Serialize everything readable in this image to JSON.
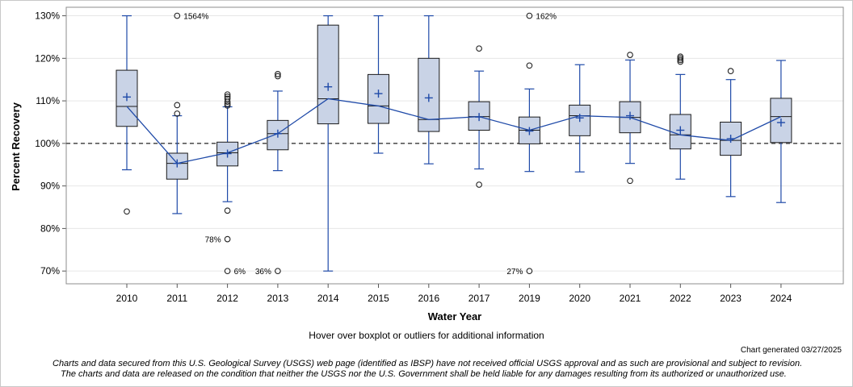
{
  "colors": {
    "box_fill": "#c9d3e6",
    "box_stroke": "#1a1a1a",
    "blue": "#1f4aa8",
    "refline": "#555555",
    "grid": "#e6e6e6"
  },
  "chart_data": {
    "type": "boxplot",
    "xlabel": "Water Year",
    "ylabel": "Percent Recovery",
    "ylim": [
      67,
      132
    ],
    "y_ticks": [
      70,
      80,
      90,
      100,
      110,
      120,
      130
    ],
    "y_tick_labels": [
      "70%",
      "80%",
      "90%",
      "100%",
      "110%",
      "120%",
      "130%"
    ],
    "reference_line": 100,
    "categories": [
      "2010",
      "2011",
      "2012",
      "2013",
      "2014",
      "2015",
      "2016",
      "2017",
      "2019",
      "2020",
      "2021",
      "2022",
      "2023",
      "2024"
    ],
    "boxes": [
      {
        "year": "2010",
        "q1": 104.0,
        "median": 108.7,
        "q3": 117.2,
        "mean": 110.9,
        "whisker_low": 93.8,
        "whisker_high": 130.0,
        "outliers": [
          84.0
        ]
      },
      {
        "year": "2011",
        "q1": 91.6,
        "median": 95.3,
        "q3": 97.7,
        "mean": 95.3,
        "whisker_low": 83.5,
        "whisker_high": 106.5,
        "outliers": [
          109.0,
          107.0
        ]
      },
      {
        "year": "2012",
        "q1": 94.7,
        "median": 97.8,
        "q3": 100.3,
        "mean": 97.6,
        "whisker_low": 86.3,
        "whisker_high": 108.6,
        "outliers": [
          111.5,
          111.0,
          110.5,
          109.8,
          109.3,
          108.9,
          84.2,
          77.5
        ]
      },
      {
        "year": "2013",
        "q1": 98.5,
        "median": 102.3,
        "q3": 105.4,
        "mean": 102.3,
        "whisker_low": 93.6,
        "whisker_high": 112.3,
        "outliers": [
          116.3,
          115.8
        ]
      },
      {
        "year": "2014",
        "q1": 104.6,
        "median": 110.5,
        "q3": 127.8,
        "mean": 113.3,
        "whisker_low": 70.0,
        "whisker_high": 130.0,
        "outliers": []
      },
      {
        "year": "2015",
        "q1": 104.7,
        "median": 108.8,
        "q3": 116.2,
        "mean": 111.7,
        "whisker_low": 97.7,
        "whisker_high": 130.0,
        "outliers": []
      },
      {
        "year": "2016",
        "q1": 102.8,
        "median": 105.6,
        "q3": 120.0,
        "mean": 110.7,
        "whisker_low": 95.2,
        "whisker_high": 130.0,
        "outliers": []
      },
      {
        "year": "2017",
        "q1": 103.1,
        "median": 106.3,
        "q3": 109.8,
        "mean": 106.2,
        "whisker_low": 94.0,
        "whisker_high": 117.0,
        "outliers": [
          122.3,
          90.3
        ]
      },
      {
        "year": "2019",
        "q1": 99.9,
        "median": 103.1,
        "q3": 106.2,
        "mean": 102.9,
        "whisker_low": 93.4,
        "whisker_high": 112.8,
        "outliers": [
          118.3
        ]
      },
      {
        "year": "2020",
        "q1": 101.8,
        "median": 106.5,
        "q3": 109.0,
        "mean": 106.0,
        "whisker_low": 93.3,
        "whisker_high": 118.5,
        "outliers": []
      },
      {
        "year": "2021",
        "q1": 102.5,
        "median": 106.1,
        "q3": 109.8,
        "mean": 106.5,
        "whisker_low": 95.3,
        "whisker_high": 119.6,
        "outliers": [
          120.8,
          91.2
        ]
      },
      {
        "year": "2022",
        "q1": 98.7,
        "median": 102.0,
        "q3": 106.8,
        "mean": 103.1,
        "whisker_low": 91.6,
        "whisker_high": 116.2,
        "outliers": [
          120.4,
          120.0,
          119.6,
          119.2
        ]
      },
      {
        "year": "2023",
        "q1": 97.2,
        "median": 100.7,
        "q3": 105.0,
        "mean": 101.1,
        "whisker_low": 87.5,
        "whisker_high": 115.0,
        "outliers": [
          117.0
        ]
      },
      {
        "year": "2024",
        "q1": 100.2,
        "median": 106.3,
        "q3": 110.6,
        "mean": 104.9,
        "whisker_low": 86.1,
        "whisker_high": 119.5,
        "outliers": []
      }
    ],
    "offscale": [
      {
        "year": "2011",
        "value": 130,
        "label": "1564%",
        "side": "right"
      },
      {
        "year": "2012",
        "value": 70,
        "label": "6%",
        "side": "right"
      },
      {
        "year": "2013",
        "value": 70,
        "label": "36%",
        "side": "left"
      },
      {
        "year": "2019",
        "value": 130,
        "label": "162%",
        "side": "right"
      },
      {
        "year": "2019",
        "value": 70,
        "label": "27%",
        "side": "left"
      }
    ],
    "annotations": [
      {
        "year": "2012",
        "value": 77.5,
        "label": "78%",
        "side": "left"
      }
    ]
  },
  "footer": {
    "hover_note": "Hover over boxplot or outliers for additional information",
    "generated": "Chart generated 03/27/2025",
    "disclaimer_1": "Charts and data secured from this U.S. Geological Survey (USGS) web page (identified as IBSP) have not received official USGS approval and as such are provisional and subject to revision.",
    "disclaimer_2": "The charts and data are released on the condition that neither the USGS nor the U.S. Government shall be held liable for any damages resulting from its authorized or unauthorized use."
  }
}
